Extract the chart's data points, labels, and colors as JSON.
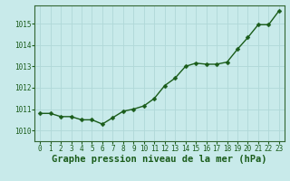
{
  "x": [
    0,
    1,
    2,
    3,
    4,
    5,
    6,
    7,
    8,
    9,
    10,
    11,
    12,
    13,
    14,
    15,
    16,
    17,
    18,
    19,
    20,
    21,
    22,
    23
  ],
  "y": [
    1010.8,
    1010.8,
    1010.65,
    1010.65,
    1010.5,
    1010.5,
    1010.3,
    1010.6,
    1010.9,
    1011.0,
    1011.15,
    1011.5,
    1012.1,
    1012.45,
    1013.0,
    1013.15,
    1013.1,
    1013.1,
    1013.2,
    1013.8,
    1014.35,
    1014.95,
    1014.95,
    1015.6
  ],
  "line_color": "#1a5c1a",
  "marker_color": "#1a5c1a",
  "bg_color": "#c8eaea",
  "grid_color": "#b0d8d8",
  "xlabel": "Graphe pression niveau de la mer (hPa)",
  "xlabel_color": "#1a5c1a",
  "ylim": [
    1009.5,
    1015.85
  ],
  "yticks": [
    1010,
    1011,
    1012,
    1013,
    1014,
    1015
  ],
  "xtick_labels": [
    "0",
    "1",
    "2",
    "3",
    "4",
    "5",
    "6",
    "7",
    "8",
    "9",
    "10",
    "11",
    "12",
    "13",
    "14",
    "15",
    "16",
    "17",
    "18",
    "19",
    "20",
    "21",
    "22",
    "23"
  ],
  "tick_label_color": "#1a5c1a",
  "tick_label_fontsize": 5.5,
  "xlabel_fontsize": 7.5,
  "line_width": 1.0,
  "marker_size": 2.5
}
